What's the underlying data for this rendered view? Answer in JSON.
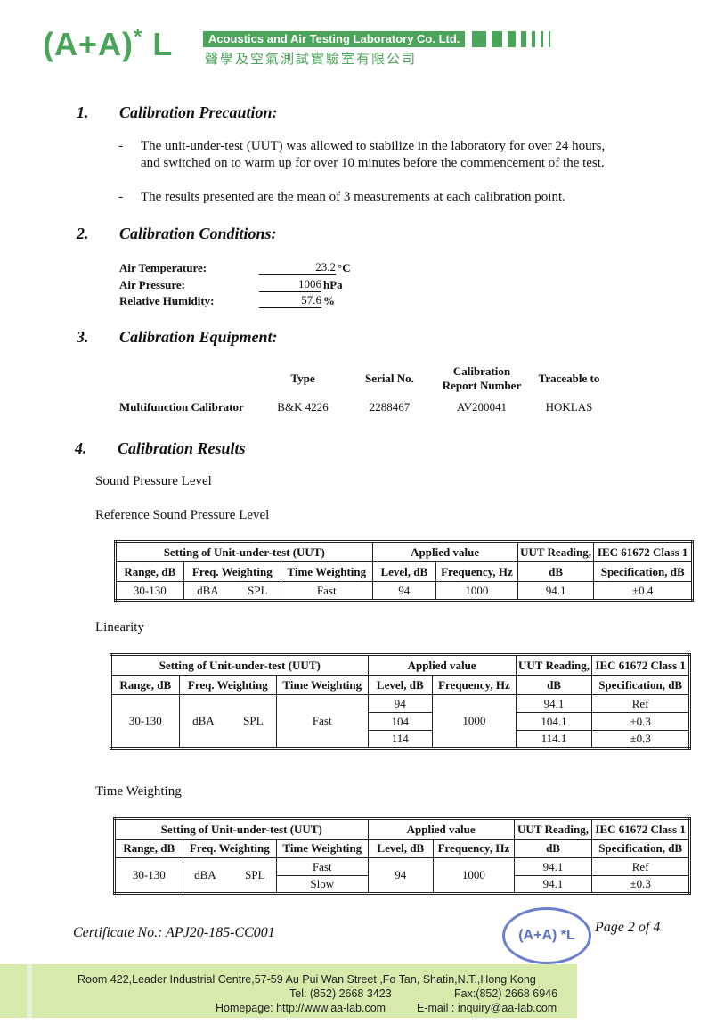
{
  "header": {
    "logo": "(A+A)*L",
    "company_en": "Acoustics and Air Testing Laboratory Co. Ltd.",
    "company_cn": "聲學及空氣測試實驗室有限公司",
    "brand_color": "#4aa55a"
  },
  "s1": {
    "num": "1.",
    "title": "Calibration Precaution:",
    "bullets": [
      "The unit-under-test (UUT) was allowed to stabilize in the laboratory for over 24 hours,",
      "and switched on to warm up for over 10 minutes before the commencement of the test.",
      "The results presented are the mean of 3 measurements at each calibration point."
    ]
  },
  "s2": {
    "num": "2.",
    "title": "Calibration Conditions:",
    "rows": [
      {
        "label": "Air Temperature:",
        "value": "23.2",
        "unit": "°C"
      },
      {
        "label": "Air Pressure:",
        "value": "1006",
        "unit": "hPa"
      },
      {
        "label": "Relative Humidity:",
        "value": "57.6",
        "unit": "%"
      }
    ]
  },
  "s3": {
    "num": "3.",
    "title": "Calibration Equipment:",
    "headers": [
      "Type",
      "Serial No.",
      "Calibration",
      "Report Number",
      "Traceable to"
    ],
    "row": [
      "Multifunction Calibrator",
      "B&K 4226",
      "2288467",
      "AV200041",
      "HOKLAS"
    ]
  },
  "s4": {
    "num": "4.",
    "title": "Calibration Results",
    "spl": "Sound Pressure Level",
    "ref": "Reference Sound Pressure Level",
    "lin": "Linearity",
    "tw": "Time Weighting"
  },
  "th": {
    "setting": "Setting of Unit-under-test (UUT)",
    "applied": "Applied value",
    "uut": "UUT Reading,",
    "iec": "IEC 61672 Class 1",
    "range": "Range, dB",
    "freqw": "Freq. Weighting",
    "timew": "Time Weighting",
    "level": "Level, dB",
    "freq": "Frequency, Hz",
    "db": "dB",
    "spec": "Specification, dB"
  },
  "t1": {
    "range": "30-130",
    "fw": "dBA",
    "spl": "SPL",
    "tw": "Fast",
    "level": "94",
    "freq": "1000",
    "reading": "94.1",
    "spec": "±0.4"
  },
  "t2": {
    "range": "30-130",
    "fw": "dBA",
    "spl": "SPL",
    "tw": "Fast",
    "freq": "1000",
    "rows": [
      {
        "level": "94",
        "reading": "94.1",
        "spec": "Ref"
      },
      {
        "level": "104",
        "reading": "104.1",
        "spec": "±0.3"
      },
      {
        "level": "114",
        "reading": "114.1",
        "spec": "±0.3"
      }
    ]
  },
  "t3": {
    "range": "30-130",
    "fw": "dBA",
    "spl": "SPL",
    "level": "94",
    "freq": "1000",
    "rows": [
      {
        "tw": "Fast",
        "reading": "94.1",
        "spec": "Ref"
      },
      {
        "tw": "Slow",
        "reading": "94.1",
        "spec": "±0.3"
      }
    ]
  },
  "footer": {
    "cert": "Certificate No.: APJ20-185-CC001",
    "page": "Page 2 of 4",
    "stamp": "(A+A) *L",
    "address": "Room 422,Leader Industrial Centre,57-59 Au Pui Wan Street ,Fo Tan, Shatin,N.T.,Hong Kong",
    "tel": "Tel: (852) 2668 3423",
    "fax": "Fax:(852) 2668 6946",
    "web": "Homepage: http://www.aa-lab.com",
    "email": "E-mail : inquiry@aa-lab.com"
  }
}
